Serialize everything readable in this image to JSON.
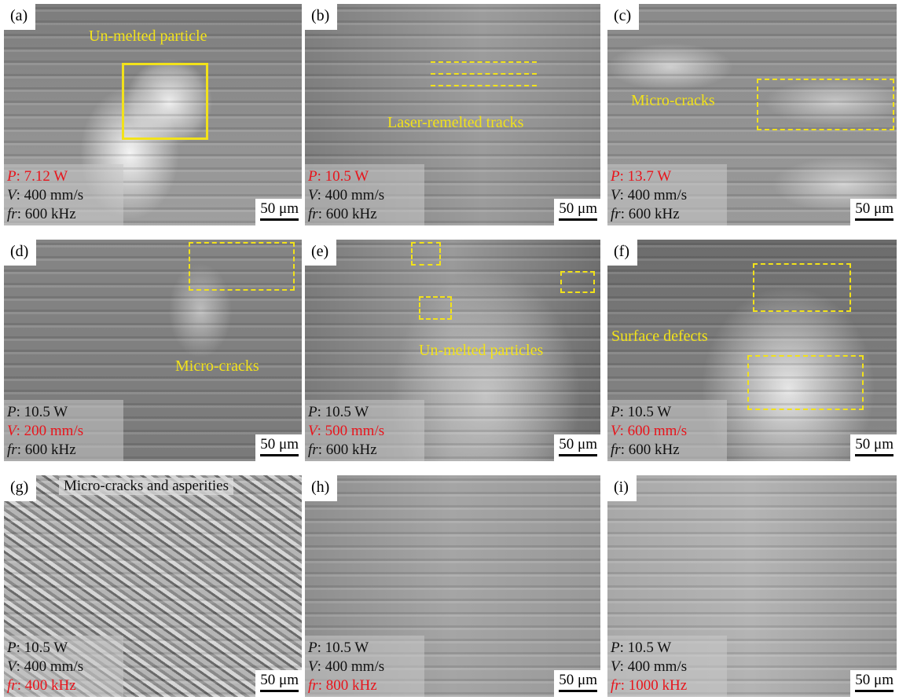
{
  "panels": [
    {
      "label": "(a)",
      "annotation": "Un-melted particle",
      "params": [
        {
          "symbol": "P",
          "text": ": 7.12 W",
          "highlight": true
        },
        {
          "symbol": "V",
          "text": ": 400 mm/s",
          "highlight": false
        },
        {
          "symbol": "fr",
          "text": ": 600 kHz",
          "highlight": false
        }
      ],
      "scale_bar": "50 μm"
    },
    {
      "label": "(b)",
      "annotation": "Laser-remelted tracks",
      "params": [
        {
          "symbol": "P",
          "text": ": 10.5 W",
          "highlight": true
        },
        {
          "symbol": "V",
          "text": ": 400 mm/s",
          "highlight": false
        },
        {
          "symbol": "fr",
          "text": ": 600 kHz",
          "highlight": false
        }
      ],
      "scale_bar": "50 μm"
    },
    {
      "label": "(c)",
      "annotation": "Micro-cracks",
      "params": [
        {
          "symbol": "P",
          "text": ": 13.7 W",
          "highlight": true
        },
        {
          "symbol": "V",
          "text": ": 400 mm/s",
          "highlight": false
        },
        {
          "symbol": "fr",
          "text": ": 600 kHz",
          "highlight": false
        }
      ],
      "scale_bar": "50 μm"
    },
    {
      "label": "(d)",
      "annotation": "Micro-cracks",
      "params": [
        {
          "symbol": "P",
          "text": ": 10.5 W",
          "highlight": false
        },
        {
          "symbol": "V",
          "text": ": 200 mm/s",
          "highlight": true
        },
        {
          "symbol": "fr",
          "text": ": 600 kHz",
          "highlight": false
        }
      ],
      "scale_bar": "50 μm"
    },
    {
      "label": "(e)",
      "annotation": "Un-melted particles",
      "params": [
        {
          "symbol": "P",
          "text": ": 10.5 W",
          "highlight": false
        },
        {
          "symbol": "V",
          "text": ": 500 mm/s",
          "highlight": true
        },
        {
          "symbol": "fr",
          "text": ": 600 kHz",
          "highlight": false
        }
      ],
      "scale_bar": "50 μm"
    },
    {
      "label": "(f)",
      "annotation": "Surface defects",
      "params": [
        {
          "symbol": "P",
          "text": ": 10.5 W",
          "highlight": false
        },
        {
          "symbol": "V",
          "text": ": 600 mm/s",
          "highlight": true
        },
        {
          "symbol": "fr",
          "text": ": 600 kHz",
          "highlight": false
        }
      ],
      "scale_bar": "50 μm"
    },
    {
      "label": "(g)",
      "annotation": "Micro-cracks and asperities",
      "params": [
        {
          "symbol": "P",
          "text": ": 10.5 W",
          "highlight": false
        },
        {
          "symbol": "V",
          "text": ": 400 mm/s",
          "highlight": false
        },
        {
          "symbol": "fr",
          "text": ": 400 kHz",
          "highlight": true
        }
      ],
      "scale_bar": "50 μm"
    },
    {
      "label": "(h)",
      "params": [
        {
          "symbol": "P",
          "text": ": 10.5 W",
          "highlight": false
        },
        {
          "symbol": "V",
          "text": ": 400 mm/s",
          "highlight": false
        },
        {
          "symbol": "fr",
          "text": ": 800 kHz",
          "highlight": true
        }
      ],
      "scale_bar": "50 μm"
    },
    {
      "label": "(i)",
      "params": [
        {
          "symbol": "P",
          "text": ": 10.5 W",
          "highlight": false
        },
        {
          "symbol": "V",
          "text": ": 400 mm/s",
          "highlight": false
        },
        {
          "symbol": "fr",
          "text": ": 1000 kHz",
          "highlight": true
        }
      ],
      "scale_bar": "50 μm"
    }
  ]
}
